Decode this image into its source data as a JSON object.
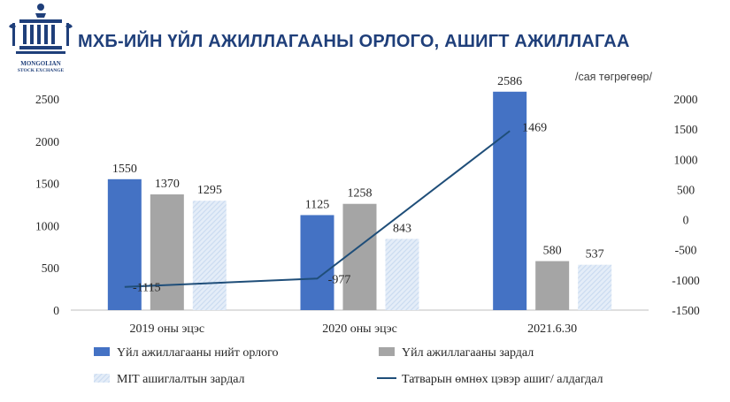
{
  "header": {
    "title": "МХБ-ИЙН ҮЙЛ АЖИЛЛАГААНЫ ОРЛОГО, АШИГТ АЖИЛЛАГАА",
    "units_note": "/сая төгрөгөөр/",
    "logo_name": "MONGOLIAN",
    "logo_sub": "STOCK EXCHANGE"
  },
  "colors": {
    "income": "#4472c4",
    "expense": "#a5a5a5",
    "it_expense": "#c9daf0",
    "profit_line": "#1f4e79",
    "brand": "#1f3f7a"
  },
  "chart_data": {
    "type": "bar",
    "categories": [
      "2019 оны эцэс",
      "2020 оны эцэс",
      "2021.6.30"
    ],
    "series": [
      {
        "name": "Үйл ажиллагааны нийт орлого",
        "type": "bar",
        "axis": "left",
        "values": [
          1550,
          1125,
          2586
        ]
      },
      {
        "name": "Үйл ажиллагааны зардал",
        "type": "bar",
        "axis": "left",
        "values": [
          1370,
          1258,
          580
        ]
      },
      {
        "name": "МIТ ашиглалтын зардал",
        "type": "bar",
        "axis": "left",
        "values": [
          1295,
          843,
          537
        ]
      },
      {
        "name": "Татварын өмнөх цэвэр ашиг/ алдагдал",
        "type": "line",
        "axis": "right",
        "values": [
          -1115,
          -977,
          1469
        ]
      }
    ],
    "y_left": {
      "lim": [
        0,
        2500
      ],
      "ticks": [
        0,
        500,
        1000,
        1500,
        2000,
        2500
      ]
    },
    "y_right": {
      "lim": [
        -1500,
        2000
      ],
      "ticks": [
        -1500,
        -1000,
        -500,
        0,
        500,
        1000,
        1500,
        2000
      ]
    },
    "legend_position": "bottom",
    "grid": false
  }
}
